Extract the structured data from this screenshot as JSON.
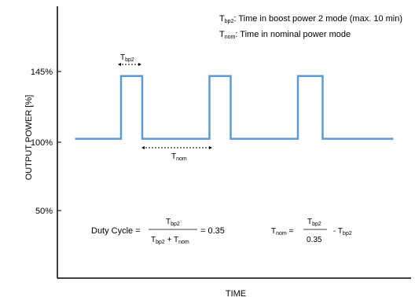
{
  "chart_data": {
    "type": "line",
    "xlabel": "TIME",
    "ylabel": "OUTPUT POWER [%]",
    "y_ticks": [
      "145%",
      "100%",
      "50%"
    ],
    "y_tick_values": [
      145,
      100,
      50
    ],
    "ylim": [
      0,
      195
    ],
    "xlim": [
      0,
      1
    ],
    "series": [
      {
        "color": "#5b9bd5",
        "x": [
          0.05,
          0.18,
          0.18,
          0.24,
          0.24,
          0.43,
          0.43,
          0.49,
          0.49,
          0.68,
          0.68,
          0.75,
          0.75,
          0.95
        ],
        "y": [
          100,
          100,
          145,
          145,
          100,
          100,
          145,
          145,
          100,
          100,
          145,
          145,
          100,
          100
        ]
      }
    ],
    "legend": {
      "line1": {
        "sym": "T",
        "sub": "bp2",
        "text": ": Time in boost power 2 mode (max. 10 min)"
      },
      "line2": {
        "sym": "T",
        "sub": "nom",
        "text": ": Time in nominal power mode"
      }
    },
    "annotations": {
      "tbp2_sym": "T",
      "tbp2_sub": "bp2",
      "tnom_sym": "T",
      "tnom_sub": "nom"
    },
    "formula_duty": {
      "label": "Duty Cycle =",
      "num_sym": "T",
      "num_sub": "bp2",
      "den_sym1": "T",
      "den_sub1": "bp2",
      "den_plus": " + ",
      "den_sym2": "T",
      "den_sub2": "nom",
      "result": "= 0.35"
    },
    "formula_tnom": {
      "lhs_sym": "T",
      "lhs_sub": "nom",
      "equals": " =",
      "num_sym": "T",
      "num_sub": "bp2",
      "den": "0.35",
      "tail": "- T",
      "tail_sub": "bp2"
    },
    "grid": false
  }
}
